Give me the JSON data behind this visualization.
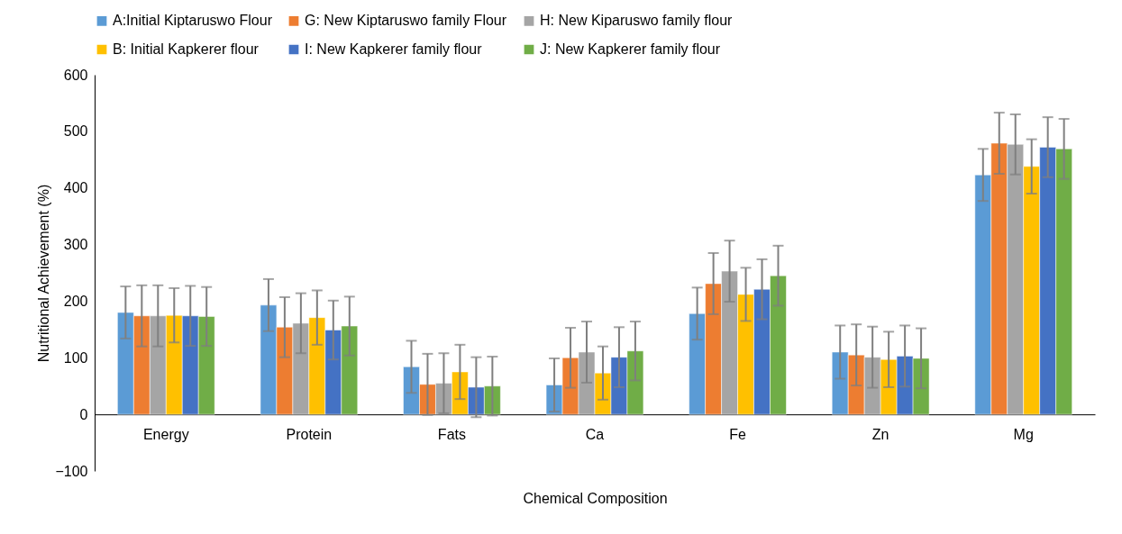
{
  "chart_data": {
    "type": "bar",
    "xlabel": "Chemical Composition",
    "ylabel": "Nutritional Achievement (%)",
    "categories": [
      "Energy",
      "Protein",
      "Fats",
      "Ca",
      "Fe",
      "Zn",
      "Mg"
    ],
    "ylim": [
      -100,
      600
    ],
    "yticks": [
      -100,
      0,
      100,
      200,
      300,
      400,
      500,
      600
    ],
    "grid": false,
    "legend": "top",
    "series": [
      {
        "name": "A:Initial Kiptaruswo Flour",
        "color": "#5b9bd5",
        "values": [
          180,
          193,
          84,
          52,
          178,
          110,
          423
        ],
        "errors": [
          46,
          46,
          46,
          47,
          46,
          47,
          46
        ]
      },
      {
        "name": "G: New Kiptaruswo family Flour",
        "color": "#ed7d31",
        "values": [
          174,
          154,
          53,
          100,
          231,
          105,
          479
        ],
        "errors": [
          54,
          53,
          54,
          53,
          54,
          54,
          54
        ]
      },
      {
        "name": "H: New Kiparuswo family flour",
        "color": "#a5a5a5",
        "values": [
          174,
          161,
          55,
          110,
          253,
          101,
          477
        ],
        "errors": [
          54,
          53,
          53,
          54,
          54,
          54,
          53
        ]
      },
      {
        "name": "B: Initial Kapkerer flour",
        "color": "#ffc000",
        "values": [
          175,
          171,
          75,
          73,
          212,
          97,
          438
        ],
        "errors": [
          48,
          48,
          48,
          47,
          47,
          49,
          48
        ]
      },
      {
        "name": "I: New Kapkerer family flour",
        "color": "#4472c4",
        "values": [
          174,
          149,
          48,
          101,
          221,
          103,
          472
        ],
        "errors": [
          53,
          52,
          53,
          53,
          53,
          54,
          53
        ]
      },
      {
        "name": "J: New Kapkerer family flour",
        "color": "#70ad47",
        "values": [
          173,
          156,
          50,
          112,
          245,
          99,
          469
        ],
        "errors": [
          52,
          52,
          52,
          52,
          53,
          53,
          53
        ]
      }
    ]
  }
}
